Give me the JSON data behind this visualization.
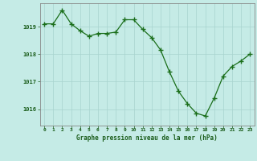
{
  "x": [
    0,
    1,
    2,
    3,
    4,
    5,
    6,
    7,
    8,
    9,
    10,
    11,
    12,
    13,
    14,
    15,
    16,
    17,
    18,
    19,
    20,
    21,
    22,
    23
  ],
  "y": [
    1019.1,
    1019.1,
    1019.6,
    1019.1,
    1018.85,
    1018.65,
    1018.75,
    1018.75,
    1018.8,
    1019.25,
    1019.25,
    1018.9,
    1018.6,
    1018.15,
    1017.35,
    1016.65,
    1016.2,
    1015.85,
    1015.75,
    1016.4,
    1017.2,
    1017.55,
    1017.75,
    1018.0
  ],
  "line_color": "#1a6e1a",
  "marker_color": "#1a6e1a",
  "background_color": "#c5ebe6",
  "grid_color": "#a8d4ce",
  "xlabel": "Graphe pression niveau de la mer (hPa)",
  "xlabel_color": "#1a5c1a",
  "tick_color": "#1a5c1a",
  "ylim": [
    1015.4,
    1019.85
  ],
  "yticks": [
    1016,
    1017,
    1018,
    1019
  ],
  "xticks": [
    0,
    1,
    2,
    3,
    4,
    5,
    6,
    7,
    8,
    9,
    10,
    11,
    12,
    13,
    14,
    15,
    16,
    17,
    18,
    19,
    20,
    21,
    22,
    23
  ],
  "border_color": "#888888",
  "marker_size": 2.5,
  "linewidth": 0.9
}
